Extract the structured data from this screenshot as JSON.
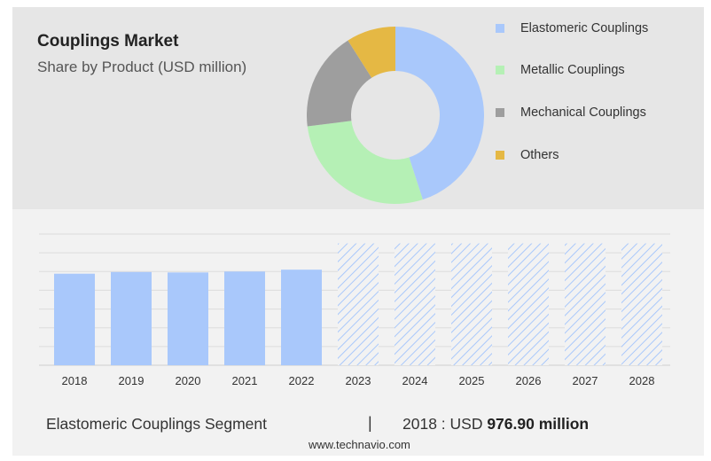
{
  "header": {
    "title": "Couplings Market",
    "subtitle": "Share by Product (USD million)"
  },
  "donut_chart": {
    "type": "pie",
    "style": "donut",
    "slices": [
      {
        "label": "Elastomeric Couplings",
        "value": 45,
        "color": "#a9c8fb"
      },
      {
        "label": "Metallic Couplings",
        "value": 28,
        "color": "#b5f0b5"
      },
      {
        "label": "Mechanical Couplings",
        "value": 18,
        "color": "#9e9e9e"
      },
      {
        "label": "Others",
        "value": 9,
        "color": "#e5b844"
      }
    ],
    "legend_position": "right"
  },
  "chart_data": {
    "type": "bar",
    "categories": [
      "2018",
      "2019",
      "2020",
      "2021",
      "2022",
      "2023",
      "2024",
      "2025",
      "2026",
      "2027",
      "2028"
    ],
    "values": [
      976.9,
      995,
      990,
      1000,
      1020,
      null,
      null,
      null,
      null,
      null,
      null
    ],
    "forecast_categories": [
      "2023",
      "2024",
      "2025",
      "2026",
      "2027",
      "2028"
    ],
    "ylim": [
      0,
      1400
    ],
    "grid": true,
    "colors": {
      "actual": "#a9c8fb",
      "forecast_hatch": "#a9c8fb"
    }
  },
  "footer": {
    "segment_label": "Elastomeric Couplings Segment",
    "divider": "|",
    "year_label": "2018 : USD ",
    "value_label": "976.90 million",
    "source": "www.technavio.com"
  }
}
